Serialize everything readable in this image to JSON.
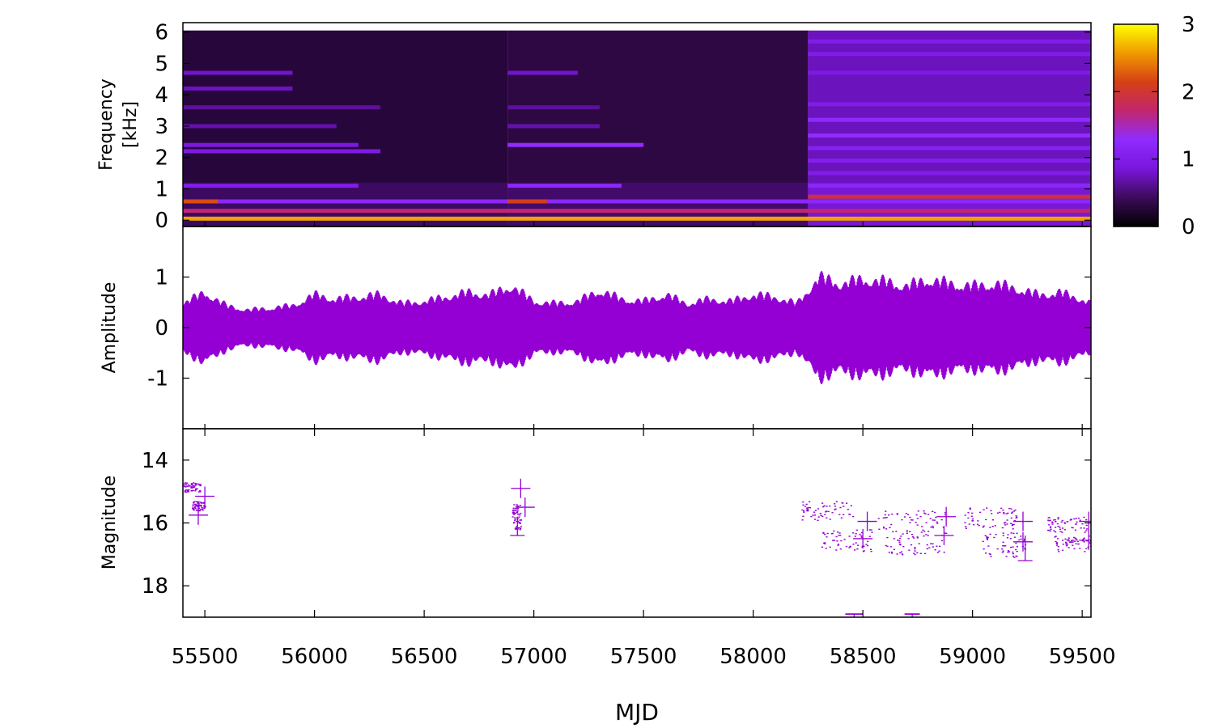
{
  "chart_data": [
    {
      "type": "heatmap",
      "ylabel_line1": "Frequency",
      "ylabel_line2": "[kHz]",
      "x_range": [
        55400,
        59540
      ],
      "ylim": [
        -0.2,
        6.3
      ],
      "y_ticks": [
        "0",
        "1",
        "2",
        "3",
        "4",
        "5",
        "6"
      ],
      "y_tick_values": [
        0,
        1,
        2,
        3,
        4,
        5,
        6
      ],
      "colorbar": {
        "range": [
          0,
          3
        ],
        "tick_labels": [
          "0",
          "1",
          "2",
          "3"
        ],
        "tick_values": [
          0,
          1,
          2,
          3
        ],
        "colormap": [
          "#000000",
          "#3c0b5a",
          "#7a15dc",
          "#8f2cff",
          "#c2266d",
          "#d54015",
          "#f09a00",
          "#ffff00"
        ]
      },
      "segments": [
        {
          "x_start": 55400,
          "x_end": 56880,
          "background": 0.28
        },
        {
          "x_start": 56880,
          "x_end": 58250,
          "background": 0.32
        },
        {
          "x_start": 58250,
          "x_end": 59540,
          "background": 0.75
        }
      ],
      "bands": [
        {
          "x_start": 55400,
          "x_end": 59540,
          "y": 0.05,
          "value": 2.6
        },
        {
          "x_start": 55400,
          "x_end": 59540,
          "y": 0.3,
          "value": 1.7
        },
        {
          "x_start": 55400,
          "x_end": 59540,
          "y": 0.6,
          "value": 1.2
        },
        {
          "x_start": 55400,
          "x_end": 55560,
          "y": 0.6,
          "value": 2.2
        },
        {
          "x_start": 55400,
          "x_end": 56200,
          "y": 1.1,
          "value": 1.0
        },
        {
          "x_start": 55400,
          "x_end": 56300,
          "y": 2.2,
          "value": 0.95
        },
        {
          "x_start": 55400,
          "x_end": 56200,
          "y": 2.4,
          "value": 0.9
        },
        {
          "x_start": 55400,
          "x_end": 56100,
          "y": 3.0,
          "value": 0.7
        },
        {
          "x_start": 55400,
          "x_end": 56300,
          "y": 3.6,
          "value": 0.65
        },
        {
          "x_start": 55400,
          "x_end": 55900,
          "y": 4.2,
          "value": 0.75
        },
        {
          "x_start": 55400,
          "x_end": 55900,
          "y": 4.7,
          "value": 0.8
        },
        {
          "x_start": 56880,
          "x_end": 57060,
          "y": 0.6,
          "value": 2.1
        },
        {
          "x_start": 56880,
          "x_end": 57400,
          "y": 1.1,
          "value": 1.2
        },
        {
          "x_start": 56880,
          "x_end": 57500,
          "y": 2.4,
          "value": 1.3
        },
        {
          "x_start": 56880,
          "x_end": 57300,
          "y": 3.0,
          "value": 0.7
        },
        {
          "x_start": 56880,
          "x_end": 57300,
          "y": 3.6,
          "value": 0.65
        },
        {
          "x_start": 56880,
          "x_end": 57200,
          "y": 4.7,
          "value": 0.8
        },
        {
          "x_start": 58250,
          "x_end": 59540,
          "y": 0.75,
          "value": 1.9
        },
        {
          "x_start": 58250,
          "x_end": 59540,
          "y": 1.1,
          "value": 1.2
        },
        {
          "x_start": 58250,
          "x_end": 59540,
          "y": 1.5,
          "value": 1.0
        },
        {
          "x_start": 58250,
          "x_end": 59540,
          "y": 1.9,
          "value": 1.05
        },
        {
          "x_start": 58250,
          "x_end": 59540,
          "y": 2.3,
          "value": 1.1
        },
        {
          "x_start": 58250,
          "x_end": 59540,
          "y": 2.7,
          "value": 1.3
        },
        {
          "x_start": 58250,
          "x_end": 59540,
          "y": 3.2,
          "value": 1.25
        },
        {
          "x_start": 58250,
          "x_end": 59540,
          "y": 3.7,
          "value": 1.0
        },
        {
          "x_start": 58250,
          "x_end": 59540,
          "y": 4.7,
          "value": 0.95
        },
        {
          "x_start": 58250,
          "x_end": 59540,
          "y": 5.3,
          "value": 1.0
        },
        {
          "x_start": 58250,
          "x_end": 59540,
          "y": 5.7,
          "value": 1.0
        }
      ]
    },
    {
      "type": "line",
      "ylabel": "Amplitude",
      "x_range": [
        55400,
        59540
      ],
      "ylim": [
        -2.0,
        2.0
      ],
      "y_ticks": [
        "-1",
        "0",
        "1"
      ],
      "y_tick_values": [
        -1,
        0,
        1
      ],
      "color": "#9400d3",
      "envelope": {
        "x": [
          55400,
          55500,
          55600,
          55700,
          55800,
          55900,
          56000,
          56100,
          56200,
          56300,
          56400,
          56500,
          56600,
          56700,
          56800,
          56900,
          57000,
          57100,
          57200,
          57300,
          57400,
          57500,
          57600,
          57700,
          57800,
          57900,
          58000,
          58100,
          58200,
          58300,
          58400,
          58500,
          58600,
          58700,
          58800,
          58900,
          59000,
          59100,
          59200,
          59300,
          59400,
          59500,
          59540
        ],
        "y": [
          0.55,
          0.8,
          0.5,
          0.4,
          0.45,
          0.5,
          0.75,
          0.65,
          0.7,
          0.75,
          0.55,
          0.6,
          0.7,
          0.8,
          0.75,
          0.95,
          0.6,
          0.55,
          0.6,
          0.85,
          0.65,
          0.6,
          0.75,
          0.55,
          0.65,
          0.6,
          0.75,
          0.7,
          0.55,
          1.15,
          1.0,
          1.1,
          1.05,
          0.95,
          1.1,
          1.0,
          0.95,
          1.0,
          0.9,
          0.75,
          0.8,
          0.65,
          0.55
        ]
      }
    },
    {
      "type": "scatter",
      "ylabel": "Magnitude",
      "xlabel": "MJD",
      "x_range": [
        55400,
        59540
      ],
      "ylim": [
        19.0,
        13.0
      ],
      "y_ticks": [
        "14",
        "16",
        "18"
      ],
      "y_tick_values": [
        14,
        16,
        18
      ],
      "x_ticks": [
        "55500",
        "56000",
        "56500",
        "57000",
        "57500",
        "58000",
        "58500",
        "59000",
        "59500"
      ],
      "x_tick_values": [
        55500,
        56000,
        56500,
        57000,
        57500,
        58000,
        58500,
        59000,
        59500
      ],
      "color": "#9400d3",
      "crosses": [
        {
          "x": 55500,
          "y": 15.15
        },
        {
          "x": 55470,
          "y": 15.75
        },
        {
          "x": 56940,
          "y": 14.9
        },
        {
          "x": 56960,
          "y": 15.5
        },
        {
          "x": 58520,
          "y": 15.95
        },
        {
          "x": 58500,
          "y": 16.5
        },
        {
          "x": 58880,
          "y": 15.8
        },
        {
          "x": 58870,
          "y": 16.4
        },
        {
          "x": 59230,
          "y": 15.95
        },
        {
          "x": 59230,
          "y": 16.6
        },
        {
          "x": 59530,
          "y": 15.95
        },
        {
          "x": 59530,
          "y": 16.55
        }
      ],
      "clusters": [
        {
          "x_start": 55400,
          "x_end": 55480,
          "y_start": 14.7,
          "y_end": 15.0
        },
        {
          "x_start": 55440,
          "x_end": 55500,
          "y_start": 15.3,
          "y_end": 15.6
        },
        {
          "x_start": 56900,
          "x_end": 56940,
          "y_start": 15.4,
          "y_end": 16.2
        },
        {
          "x_start": 58220,
          "x_end": 58460,
          "y_start": 15.3,
          "y_end": 15.9
        },
        {
          "x_start": 58300,
          "x_end": 58540,
          "y_start": 16.2,
          "y_end": 16.9
        },
        {
          "x_start": 58560,
          "x_end": 58880,
          "y_start": 15.6,
          "y_end": 16.3
        },
        {
          "x_start": 58600,
          "x_end": 58880,
          "y_start": 16.3,
          "y_end": 17.0
        },
        {
          "x_start": 58960,
          "x_end": 59200,
          "y_start": 15.5,
          "y_end": 16.2
        },
        {
          "x_start": 59040,
          "x_end": 59240,
          "y_start": 16.3,
          "y_end": 17.1
        },
        {
          "x_start": 59340,
          "x_end": 59520,
          "y_start": 15.8,
          "y_end": 16.3
        },
        {
          "x_start": 59360,
          "x_end": 59540,
          "y_start": 16.4,
          "y_end": 16.9
        }
      ],
      "error_bars": [
        {
          "x": 56925,
          "y_low": 15.8,
          "y_high": 16.4
        },
        {
          "x": 59240,
          "y_low": 16.4,
          "y_high": 17.2
        }
      ],
      "bottom_markers": [
        {
          "x_start": 58420,
          "x_end": 58500,
          "y": 18.9
        },
        {
          "x_start": 58690,
          "x_end": 58760,
          "y": 18.9
        }
      ]
    }
  ]
}
